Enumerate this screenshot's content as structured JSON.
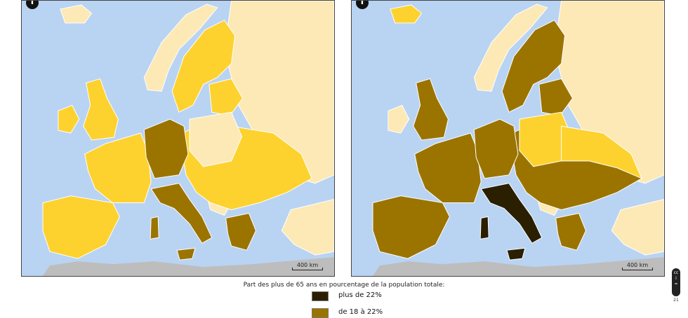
{
  "colors": {
    "sea": "#b9d3f2",
    "non_data": "#fde9b5",
    "africa": "#bdbdbd",
    "class_high": "#2a1f00",
    "class_mid": "#9b7400",
    "class_low": "#fdd22e"
  },
  "maps": [
    {
      "name": "left-map",
      "scale_label": "400 km",
      "compass_icon": "north-arrow-icon"
    },
    {
      "name": "right-map",
      "scale_label": "400 km",
      "compass_icon": "north-arrow-icon"
    }
  ],
  "legend": {
    "title": "Part des plus de 65 ans en pourcentage de la population totale:",
    "items": [
      {
        "label": "plus de 22%",
        "color": "#2a1f00"
      },
      {
        "label": "de 18 à 22%",
        "color": "#9b7400"
      }
    ]
  },
  "license_icon": "creative-commons-icon",
  "license_year": "21"
}
